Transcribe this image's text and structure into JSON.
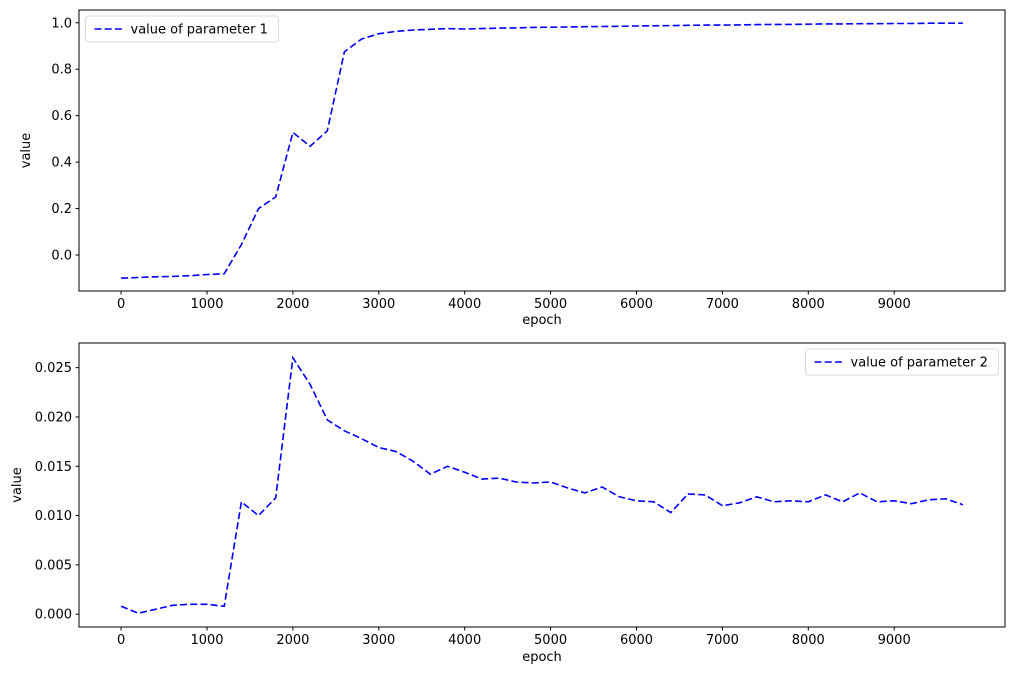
{
  "figure": {
    "background_color": "#ffffff",
    "accent_color": "#0000ff"
  },
  "chart_data": [
    {
      "type": "line",
      "title": "",
      "xlabel": "epoch",
      "ylabel": "value",
      "legend": "value of parameter 1",
      "legend_position": "upper-left",
      "line_color": "#0000ff",
      "line_style": "dashed",
      "grid": false,
      "xlim": [
        -490,
        10290
      ],
      "ylim": [
        -0.155,
        1.055
      ],
      "xticks": [
        0,
        1000,
        2000,
        3000,
        4000,
        5000,
        6000,
        7000,
        8000,
        9000
      ],
      "yticks": [
        0.0,
        0.2,
        0.4,
        0.6,
        0.8,
        1.0
      ],
      "ytick_decimals": 1,
      "x": [
        0,
        200,
        400,
        600,
        800,
        1000,
        1200,
        1400,
        1600,
        1800,
        2000,
        2200,
        2400,
        2600,
        2800,
        3000,
        3200,
        3400,
        3600,
        3800,
        4000,
        4200,
        4400,
        4600,
        4800,
        5000,
        5200,
        5400,
        5600,
        5800,
        6000,
        6200,
        6400,
        6600,
        6800,
        7000,
        7200,
        7400,
        7600,
        7800,
        8000,
        8200,
        8400,
        8600,
        8800,
        9000,
        9200,
        9400,
        9600,
        9800
      ],
      "y": [
        -0.1,
        -0.097,
        -0.094,
        -0.092,
        -0.089,
        -0.084,
        -0.081,
        0.045,
        0.2,
        0.25,
        0.528,
        0.468,
        0.535,
        0.875,
        0.93,
        0.953,
        0.963,
        0.969,
        0.972,
        0.975,
        0.973,
        0.975,
        0.977,
        0.978,
        0.98,
        0.981,
        0.982,
        0.983,
        0.984,
        0.985,
        0.986,
        0.987,
        0.988,
        0.989,
        0.99,
        0.99,
        0.991,
        0.992,
        0.993,
        0.993,
        0.994,
        0.995,
        0.995,
        0.996,
        0.996,
        0.997,
        0.997,
        0.998,
        0.998,
        0.998
      ]
    },
    {
      "type": "line",
      "title": "",
      "xlabel": "epoch",
      "ylabel": "value",
      "legend": "value of parameter 2",
      "legend_position": "upper-right",
      "line_color": "#0000ff",
      "line_style": "dashed",
      "grid": false,
      "xlim": [
        -490,
        10290
      ],
      "ylim": [
        -0.0013,
        0.0275
      ],
      "xticks": [
        0,
        1000,
        2000,
        3000,
        4000,
        5000,
        6000,
        7000,
        8000,
        9000
      ],
      "yticks": [
        0.0,
        0.005,
        0.01,
        0.015,
        0.02,
        0.025
      ],
      "ytick_decimals": 3,
      "x": [
        0,
        200,
        400,
        600,
        800,
        1000,
        1200,
        1400,
        1600,
        1800,
        2000,
        2200,
        2400,
        2600,
        2800,
        3000,
        3200,
        3400,
        3600,
        3800,
        4000,
        4200,
        4400,
        4600,
        4800,
        5000,
        5200,
        5400,
        5600,
        5800,
        6000,
        6200,
        6400,
        6600,
        6800,
        7000,
        7200,
        7400,
        7600,
        7800,
        8000,
        8200,
        8400,
        8600,
        8800,
        9000,
        9200,
        9400,
        9600,
        9800
      ],
      "y": [
        0.0008,
        0.0001,
        0.0005,
        0.0009,
        0.001,
        0.001,
        0.0008,
        0.0114,
        0.01,
        0.0118,
        0.026,
        0.0233,
        0.0197,
        0.0186,
        0.0178,
        0.0169,
        0.0165,
        0.0155,
        0.0142,
        0.015,
        0.0144,
        0.0137,
        0.0138,
        0.0134,
        0.0133,
        0.0134,
        0.0128,
        0.0123,
        0.0129,
        0.0119,
        0.0115,
        0.0114,
        0.0103,
        0.0122,
        0.0121,
        0.011,
        0.0113,
        0.0119,
        0.0114,
        0.0115,
        0.0114,
        0.0121,
        0.0114,
        0.0123,
        0.0114,
        0.0115,
        0.0112,
        0.0116,
        0.0117,
        0.0111
      ]
    }
  ]
}
